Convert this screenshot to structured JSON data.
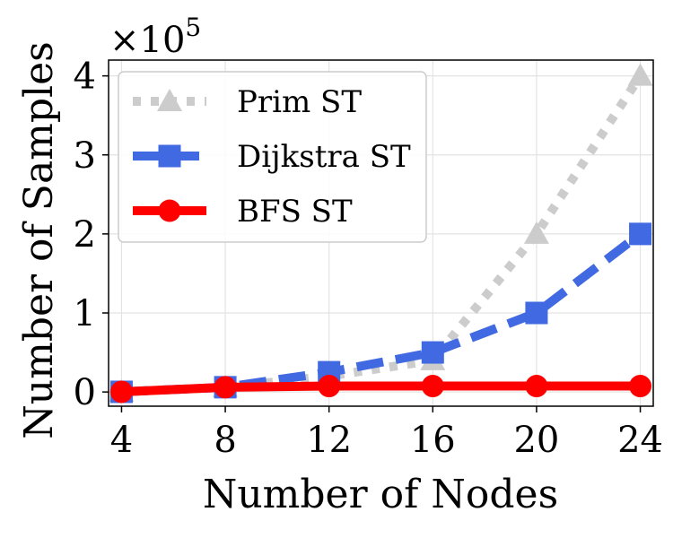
{
  "chart_data": {
    "type": "line",
    "xlabel": "Number of Nodes",
    "ylabel": "Number of Samples",
    "y_multiplier": {
      "base": "×10",
      "exponent": "5"
    },
    "x": [
      4,
      8,
      12,
      16,
      20,
      24
    ],
    "x_tick_labels": [
      "4",
      "8",
      "12",
      "16",
      "20",
      "24"
    ],
    "y_ticks": [
      0,
      1,
      2,
      3,
      4
    ],
    "y_tick_labels": [
      "0",
      "1",
      "2",
      "3",
      "4"
    ],
    "xlim": [
      3.5,
      24.5
    ],
    "ylim": [
      -0.18,
      4.2
    ],
    "grid": true,
    "legend_position": "upper-left",
    "series": [
      {
        "name": "Prim ST",
        "values": [
          0.002,
          0.06,
          0.2,
          0.4,
          2.0,
          4.0
        ],
        "color": "#cccccc",
        "marker": "triangle",
        "linestyle": "dotted"
      },
      {
        "name": "Dijkstra ST",
        "values": [
          0.002,
          0.06,
          0.25,
          0.5,
          1.0,
          2.0
        ],
        "color": "#4169e1",
        "marker": "square",
        "linestyle": "dashed"
      },
      {
        "name": "BFS ST",
        "values": [
          0.002,
          0.06,
          0.075,
          0.075,
          0.075,
          0.075
        ],
        "color": "#ff0000",
        "marker": "circle",
        "linestyle": "solid"
      }
    ]
  }
}
